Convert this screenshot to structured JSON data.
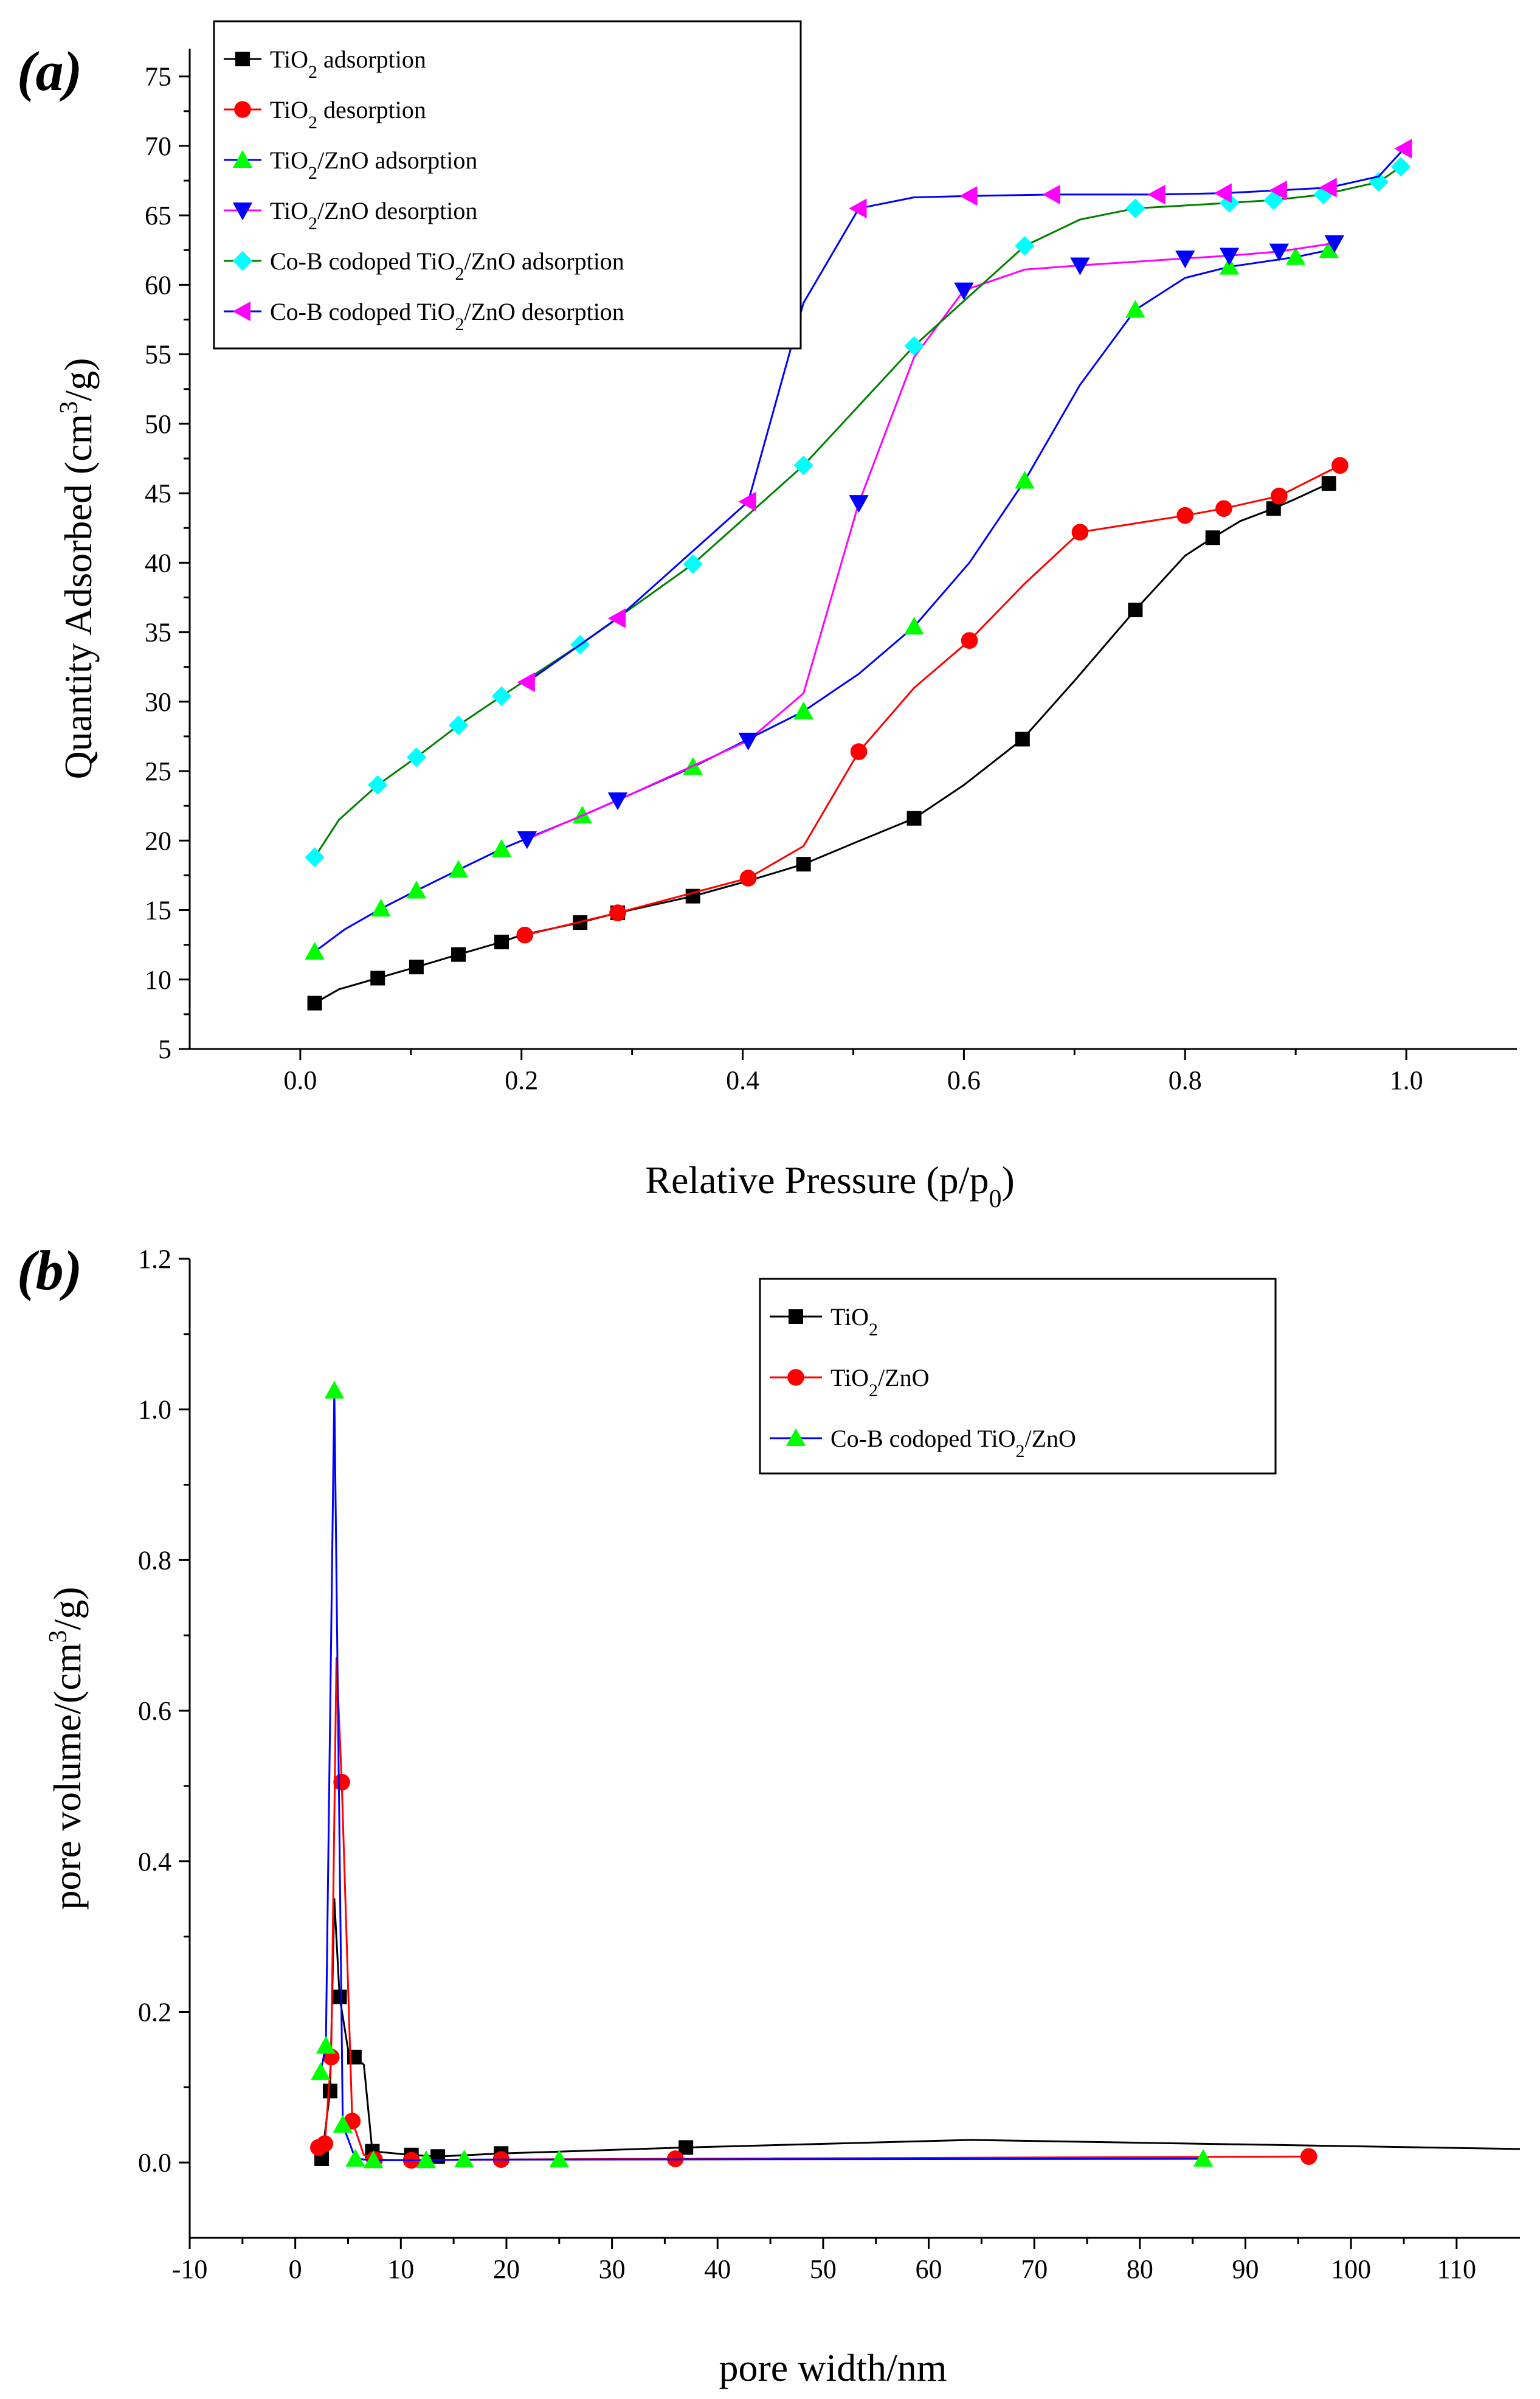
{
  "panel_labels": {
    "a": "(a)",
    "b": "(b)"
  },
  "chart_data": [
    {
      "type": "line",
      "title": "",
      "xlabel": "Relative Pressure (p/p0)",
      "xlabel_main": "Relative Pressure (p/p",
      "xlabel_sub": "0",
      "xlabel_end": ")",
      "ylabel": "Quantity Adsorbed (cm3/g)",
      "ylabel_main": "Quantity Adsorbed (cm",
      "ylabel_sup": "3",
      "ylabel_end": "/g)",
      "xlim": [
        -0.1,
        1.1
      ],
      "ylim": [
        5,
        77
      ],
      "xticks": [
        0.0,
        0.2,
        0.4,
        0.6,
        0.8,
        1.0
      ],
      "xtick_labels": [
        "0.0",
        "0.2",
        "0.4",
        "0.6",
        "0.8",
        "1.0"
      ],
      "yticks": [
        5,
        10,
        15,
        20,
        25,
        30,
        35,
        40,
        45,
        50,
        55,
        60,
        65,
        70,
        75
      ],
      "ytick_labels": [
        "5",
        "10",
        "15",
        "20",
        "25",
        "30",
        "35",
        "40",
        "45",
        "50",
        "55",
        "60",
        "65",
        "70",
        "75"
      ],
      "legend_position": "top-left",
      "series": [
        {
          "name": "TiO2 adsorption",
          "label_main": "TiO",
          "label_sub": "2",
          "label_end": " adsorption",
          "color": "#000000",
          "marker": "square",
          "x": [
            0.013,
            0.035,
            0.07,
            0.105,
            0.143,
            0.182,
            0.2,
            0.253,
            0.287,
            0.355,
            0.405,
            0.455,
            0.5,
            0.555,
            0.6,
            0.653,
            0.7,
            0.755,
            0.8,
            0.825,
            0.85,
            0.88,
            0.9,
            0.93
          ],
          "y": [
            8.3,
            9.3,
            10.1,
            10.9,
            11.8,
            12.7,
            13.2,
            14.1,
            14.8,
            16.0,
            17.1,
            18.3,
            19.8,
            21.6,
            24.0,
            27.3,
            31.5,
            36.6,
            40.5,
            41.8,
            43.0,
            43.9,
            44.6,
            45.7
          ],
          "markers": [
            0,
            2,
            3,
            4,
            5,
            7,
            8,
            9,
            11,
            13,
            15,
            17,
            19,
            21,
            23
          ]
        },
        {
          "name": "TiO2 desorption",
          "label_main": "TiO",
          "label_sub": "2",
          "label_end": " desorption",
          "color": "#ff0000",
          "marker": "circle",
          "x": [
            0.203,
            0.287,
            0.405,
            0.455,
            0.505,
            0.555,
            0.605,
            0.655,
            0.705,
            0.8,
            0.835,
            0.885,
            0.94
          ],
          "y": [
            13.2,
            14.8,
            17.3,
            19.6,
            26.4,
            31.0,
            34.4,
            38.5,
            42.2,
            43.4,
            43.9,
            44.8,
            47.0
          ],
          "markers": [
            0,
            1,
            2,
            4,
            6,
            8,
            9,
            10,
            11,
            12
          ]
        },
        {
          "name": "TiO2/ZnO adsorption",
          "label_main": "TiO",
          "label_sub": "2",
          "label_end": "/ZnO adsorption",
          "color": "#0000ff",
          "marker": "triangle-up",
          "marker_color": "#00ff00",
          "x": [
            0.013,
            0.04,
            0.073,
            0.105,
            0.143,
            0.182,
            0.255,
            0.355,
            0.455,
            0.505,
            0.555,
            0.605,
            0.655,
            0.705,
            0.755,
            0.8,
            0.84,
            0.9,
            0.93
          ],
          "y": [
            12.0,
            13.6,
            15.1,
            16.4,
            17.9,
            19.4,
            21.8,
            25.3,
            29.3,
            32.0,
            35.4,
            40.0,
            45.9,
            52.8,
            58.2,
            60.5,
            61.3,
            62.0,
            62.5
          ],
          "markers": [
            0,
            2,
            3,
            4,
            5,
            6,
            7,
            8,
            10,
            12,
            14,
            16,
            17,
            18
          ]
        },
        {
          "name": "TiO2/ZnO desorption",
          "label_main": " TiO",
          "label_sub": "2",
          "label_end": "/ZnO desorption",
          "color": "#ff00ff",
          "marker": "triangle-down",
          "marker_color": "#0000ff",
          "x": [
            0.205,
            0.287,
            0.405,
            0.455,
            0.505,
            0.555,
            0.6,
            0.655,
            0.705,
            0.8,
            0.84,
            0.885,
            0.935
          ],
          "y": [
            20.1,
            22.9,
            27.2,
            30.6,
            44.3,
            54.8,
            59.6,
            61.1,
            61.4,
            61.9,
            62.1,
            62.4,
            63.0
          ],
          "markers": [
            0,
            1,
            2,
            4,
            6,
            8,
            9,
            10,
            11,
            12
          ]
        },
        {
          "name": "Co-B codoped  TiO2/ZnO adsorption",
          "label_main": "Co-B codoped  TiO",
          "label_sub": "2",
          "label_end": "/ZnO adsorption",
          "color": "#008000",
          "marker": "diamond",
          "marker_color": "#00ffff",
          "x": [
            0.013,
            0.035,
            0.07,
            0.105,
            0.143,
            0.182,
            0.253,
            0.355,
            0.455,
            0.555,
            0.655,
            0.705,
            0.755,
            0.84,
            0.88,
            0.925,
            0.975,
            0.995
          ],
          "y": [
            18.8,
            21.5,
            24.0,
            26.0,
            28.3,
            30.4,
            34.1,
            39.9,
            47.0,
            55.6,
            62.8,
            64.7,
            65.5,
            65.9,
            66.1,
            66.5,
            67.4,
            68.5
          ],
          "markers": [
            0,
            2,
            3,
            4,
            5,
            6,
            7,
            8,
            9,
            10,
            12,
            13,
            14,
            15,
            16,
            17
          ]
        },
        {
          "name": "Co-B codoped TiO2/ZnO desorption",
          "label_main": "Co-B codoped TiO",
          "label_sub": "2",
          "label_end": "/ZnO desorption",
          "color": "#0000ff",
          "marker": "triangle-left",
          "marker_color": "#ff00ff",
          "x": [
            0.205,
            0.287,
            0.405,
            0.455,
            0.505,
            0.555,
            0.605,
            0.68,
            0.775,
            0.835,
            0.885,
            0.93,
            0.975,
            0.998
          ],
          "y": [
            31.4,
            36.0,
            44.4,
            58.7,
            65.5,
            66.3,
            66.4,
            66.5,
            66.5,
            66.6,
            66.8,
            67.0,
            67.8,
            69.8
          ],
          "markers": [
            0,
            1,
            2,
            4,
            6,
            7,
            8,
            9,
            10,
            11,
            13
          ]
        }
      ]
    },
    {
      "type": "line",
      "title": "",
      "xlabel": "pore width/nm",
      "ylabel": "pore volume/(cm3/g)",
      "ylabel_main": "pore volume/(cm",
      "ylabel_sup": "3",
      "ylabel_end": "/g)",
      "xlim": [
        -10,
        116
      ],
      "ylim": [
        -0.1,
        1.2
      ],
      "xticks": [
        -10,
        0,
        10,
        20,
        30,
        40,
        50,
        60,
        70,
        80,
        90,
        100,
        110
      ],
      "xtick_labels": [
        "-10",
        "0",
        "10",
        "20",
        "30",
        "40",
        "50",
        "60",
        "70",
        "80",
        "90",
        "100",
        "110"
      ],
      "yticks": [
        0.0,
        0.2,
        0.4,
        0.6,
        0.8,
        1.0,
        1.2
      ],
      "ytick_labels": [
        "0.0",
        "0.2",
        "0.4",
        "0.6",
        "0.8",
        "1.0",
        "1.2"
      ],
      "legend_position": "top-right",
      "series": [
        {
          "name": "TiO2",
          "label_main": "TiO",
          "label_sub": "2",
          "label_end": "",
          "color": "#000000",
          "marker": "square",
          "x": [
            2.5,
            3.3,
            3.7,
            4.2,
            5.0,
            5.6,
            6.5,
            7.3,
            11.0,
            13.5,
            19.5,
            37.0,
            64.0,
            116.0
          ],
          "y": [
            0.005,
            0.095,
            0.35,
            0.22,
            0.15,
            0.14,
            0.13,
            0.015,
            0.01,
            0.008,
            0.012,
            0.02,
            0.03,
            0.018
          ],
          "markers": [
            0,
            1,
            3,
            5,
            7,
            8,
            9,
            10,
            11
          ]
        },
        {
          "name": "TiO2/ZnO",
          "label_main": "TiO",
          "label_sub": "2",
          "label_end": "/ZnO",
          "color": "#ff0000",
          "marker": "circle",
          "x": [
            2.2,
            2.8,
            3.4,
            3.9,
            4.4,
            5.4,
            6.5,
            7.5,
            11.0,
            19.5,
            36.0,
            96.0
          ],
          "y": [
            0.02,
            0.025,
            0.14,
            0.67,
            0.505,
            0.055,
            0.01,
            0.004,
            0.003,
            0.004,
            0.005,
            0.008
          ],
          "markers": [
            0,
            1,
            2,
            4,
            5,
            7,
            8,
            9,
            10,
            11
          ]
        },
        {
          "name": "Co-B codoped TiO2/ZnO",
          "label_main": "Co-B codoped TiO",
          "label_sub": "2",
          "label_end": "/ZnO",
          "color": "#0000ff",
          "marker": "triangle-up",
          "marker_color": "#00ff00",
          "x": [
            2.4,
            2.9,
            3.7,
            4.5,
            5.7,
            7.4,
            12.4,
            16.0,
            25.0,
            86.0
          ],
          "y": [
            0.12,
            0.155,
            1.025,
            0.05,
            0.005,
            0.003,
            0.003,
            0.004,
            0.004,
            0.005
          ],
          "markers": [
            0,
            1,
            2,
            3,
            4,
            5,
            6,
            7,
            8,
            9
          ]
        }
      ]
    }
  ]
}
